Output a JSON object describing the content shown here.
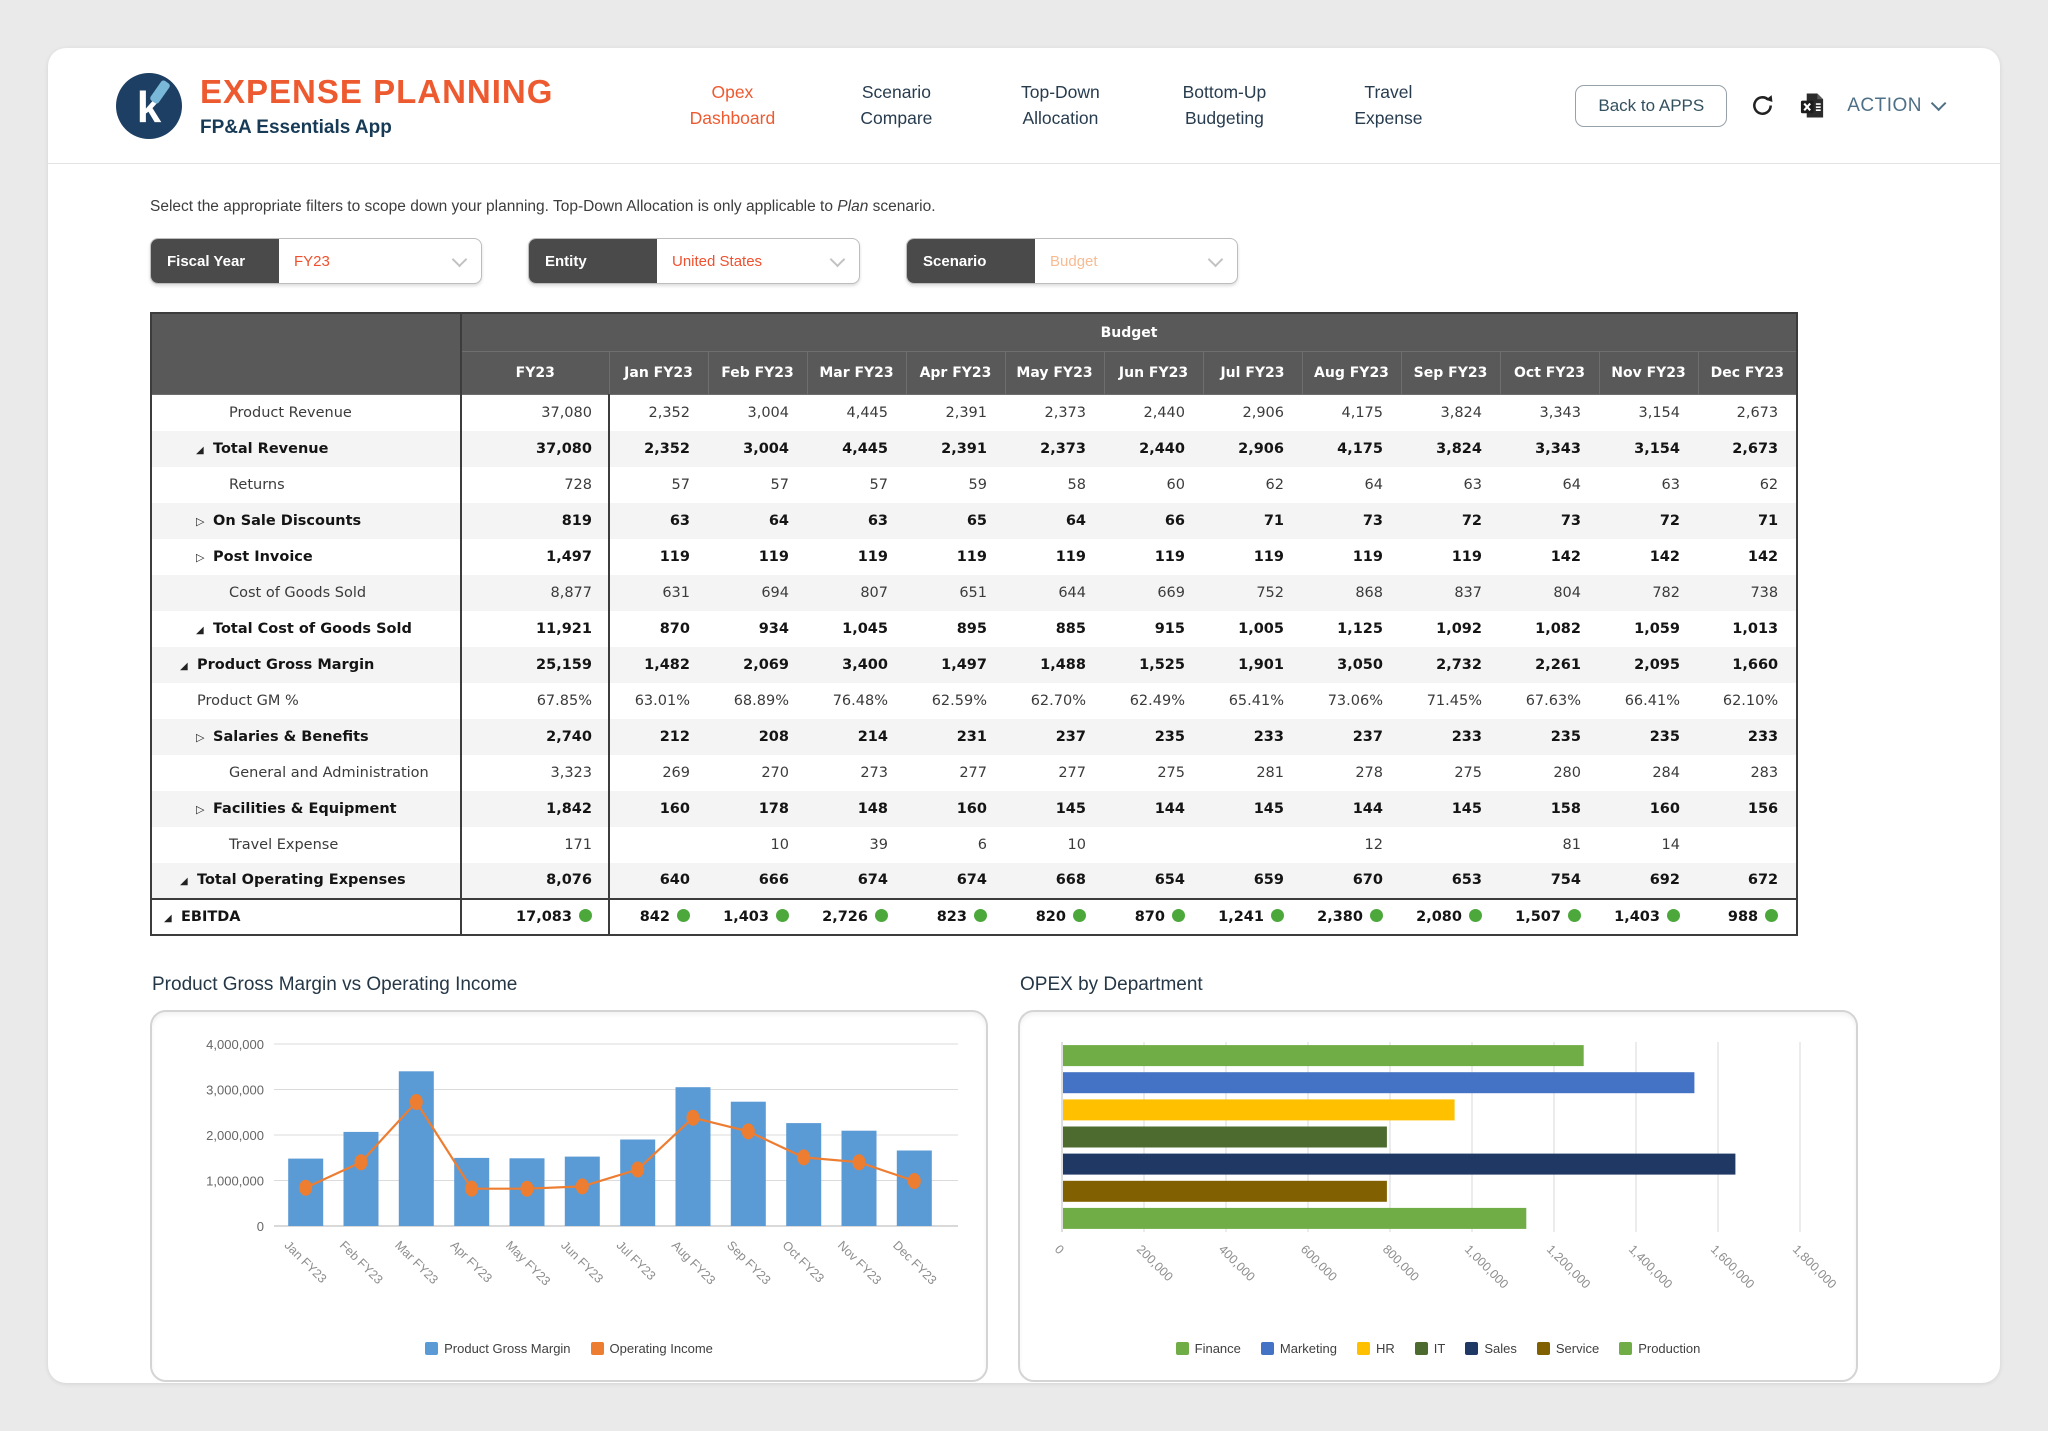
{
  "header": {
    "logo_letter": "k",
    "title": "EXPENSE PLANNING",
    "subtitle": "FP&A Essentials App",
    "nav": [
      {
        "label": "Opex Dashboard",
        "active": true
      },
      {
        "label": "Scenario Compare",
        "active": false
      },
      {
        "label": "Top-Down Allocation",
        "active": false
      },
      {
        "label": "Bottom-Up Budgeting",
        "active": false
      },
      {
        "label": "Travel Expense",
        "active": false
      }
    ],
    "back_button": "Back to APPS",
    "action_label": "ACTION",
    "icons": [
      "refresh-icon",
      "excel-export-icon",
      "chevron-down-icon"
    ]
  },
  "note": {
    "before": "Select the appropriate filters to scope down your planning. Top-Down Allocation is only applicable to ",
    "italic": "Plan",
    "after": " scenario."
  },
  "filters": [
    {
      "label": "Fiscal Year",
      "value": "FY23",
      "disabled": false
    },
    {
      "label": "Entity",
      "value": "United States",
      "disabled": false
    },
    {
      "label": "Scenario",
      "value": "Budget",
      "disabled": true
    }
  ],
  "table": {
    "group_header": "Budget",
    "columns": [
      "FY23",
      "Jan FY23",
      "Feb FY23",
      "Mar FY23",
      "Apr FY23",
      "May FY23",
      "Jun FY23",
      "Jul FY23",
      "Aug FY23",
      "Sep FY23",
      "Oct FY23",
      "Nov FY23",
      "Dec FY23"
    ],
    "rows": [
      {
        "label": "Product Revenue",
        "indent": 3,
        "marker": "none",
        "bold": false,
        "dot": false,
        "values": [
          "37,080",
          "2,352",
          "3,004",
          "4,445",
          "2,391",
          "2,373",
          "2,440",
          "2,906",
          "4,175",
          "3,824",
          "3,343",
          "3,154",
          "2,673"
        ]
      },
      {
        "label": "Total Revenue",
        "indent": 2,
        "marker": "expanded",
        "bold": true,
        "dot": false,
        "values": [
          "37,080",
          "2,352",
          "3,004",
          "4,445",
          "2,391",
          "2,373",
          "2,440",
          "2,906",
          "4,175",
          "3,824",
          "3,343",
          "3,154",
          "2,673"
        ]
      },
      {
        "label": "Returns",
        "indent": 3,
        "marker": "none",
        "bold": false,
        "dot": false,
        "values": [
          "728",
          "57",
          "57",
          "57",
          "59",
          "58",
          "60",
          "62",
          "64",
          "63",
          "64",
          "63",
          "62"
        ]
      },
      {
        "label": "On Sale Discounts",
        "indent": 2,
        "marker": "collapsed",
        "bold": true,
        "dot": false,
        "values": [
          "819",
          "63",
          "64",
          "63",
          "65",
          "64",
          "66",
          "71",
          "73",
          "72",
          "73",
          "72",
          "71"
        ]
      },
      {
        "label": "Post Invoice",
        "indent": 2,
        "marker": "collapsed",
        "bold": true,
        "dot": false,
        "values": [
          "1,497",
          "119",
          "119",
          "119",
          "119",
          "119",
          "119",
          "119",
          "119",
          "119",
          "142",
          "142",
          "142"
        ]
      },
      {
        "label": "Cost of Goods Sold",
        "indent": 3,
        "marker": "none",
        "bold": false,
        "dot": false,
        "values": [
          "8,877",
          "631",
          "694",
          "807",
          "651",
          "644",
          "669",
          "752",
          "868",
          "837",
          "804",
          "782",
          "738"
        ]
      },
      {
        "label": "Total Cost of Goods Sold",
        "indent": 2,
        "marker": "expanded",
        "bold": true,
        "dot": false,
        "values": [
          "11,921",
          "870",
          "934",
          "1,045",
          "895",
          "885",
          "915",
          "1,005",
          "1,125",
          "1,092",
          "1,082",
          "1,059",
          "1,013"
        ]
      },
      {
        "label": "Product Gross Margin",
        "indent": 1,
        "marker": "expanded",
        "bold": true,
        "dot": false,
        "values": [
          "25,159",
          "1,482",
          "2,069",
          "3,400",
          "1,497",
          "1,488",
          "1,525",
          "1,901",
          "3,050",
          "2,732",
          "2,261",
          "2,095",
          "1,660"
        ]
      },
      {
        "label": "Product GM %",
        "indent": 1,
        "marker": "none",
        "bold": false,
        "dot": false,
        "values": [
          "67.85%",
          "63.01%",
          "68.89%",
          "76.48%",
          "62.59%",
          "62.70%",
          "62.49%",
          "65.41%",
          "73.06%",
          "71.45%",
          "67.63%",
          "66.41%",
          "62.10%"
        ]
      },
      {
        "label": "Salaries & Benefits",
        "indent": 2,
        "marker": "collapsed",
        "bold": true,
        "dot": false,
        "values": [
          "2,740",
          "212",
          "208",
          "214",
          "231",
          "237",
          "235",
          "233",
          "237",
          "233",
          "235",
          "235",
          "233"
        ]
      },
      {
        "label": "General and Administration",
        "indent": 3,
        "marker": "none",
        "bold": false,
        "dot": false,
        "values": [
          "3,323",
          "269",
          "270",
          "273",
          "277",
          "277",
          "275",
          "281",
          "278",
          "275",
          "280",
          "284",
          "283"
        ]
      },
      {
        "label": "Facilities & Equipment",
        "indent": 2,
        "marker": "collapsed",
        "bold": true,
        "dot": false,
        "values": [
          "1,842",
          "160",
          "178",
          "148",
          "160",
          "145",
          "144",
          "145",
          "144",
          "145",
          "158",
          "160",
          "156"
        ]
      },
      {
        "label": "Travel Expense",
        "indent": 3,
        "marker": "none",
        "bold": false,
        "dot": false,
        "values": [
          "171",
          "",
          "10",
          "39",
          "6",
          "10",
          "",
          "",
          "12",
          "",
          "81",
          "14",
          ""
        ]
      },
      {
        "label": "Total Operating Expenses",
        "indent": 1,
        "marker": "expanded",
        "bold": true,
        "dot": false,
        "values": [
          "8,076",
          "640",
          "666",
          "674",
          "674",
          "668",
          "654",
          "659",
          "670",
          "653",
          "754",
          "692",
          "672"
        ]
      },
      {
        "label": "EBITDA",
        "indent": 0,
        "marker": "expanded",
        "bold": true,
        "dot": true,
        "values": [
          "17,083",
          "842",
          "1,403",
          "2,726",
          "823",
          "820",
          "870",
          "1,241",
          "2,380",
          "2,080",
          "1,507",
          "1,403",
          "988"
        ]
      }
    ],
    "status_dot_color": "#4da83c"
  },
  "chart_data": [
    {
      "type": "bar",
      "title": "Product Gross Margin vs Operating Income",
      "categories": [
        "Jan FY23",
        "Feb FY23",
        "Mar FY23",
        "Apr FY23",
        "May FY23",
        "Jun FY23",
        "Jul FY23",
        "Aug FY23",
        "Sep FY23",
        "Oct FY23",
        "Nov FY23",
        "Dec FY23"
      ],
      "series": [
        {
          "name": "Product Gross Margin",
          "type": "bar",
          "color": "#5B9BD5",
          "values": [
            1482000,
            2069000,
            3400000,
            1497000,
            1488000,
            1525000,
            1901000,
            3050000,
            2732000,
            2261000,
            2095000,
            1660000
          ]
        },
        {
          "name": "Operating Income",
          "type": "line",
          "color": "#ED7D31",
          "values": [
            842000,
            1403000,
            2726000,
            823000,
            820000,
            870000,
            1241000,
            2380000,
            2080000,
            1507000,
            1403000,
            988000
          ]
        }
      ],
      "ylim": [
        0,
        4000000
      ],
      "ytick_step": 1000000,
      "grid": true,
      "legend_position": "bottom"
    },
    {
      "type": "bar",
      "orientation": "horizontal",
      "title": "OPEX by Department",
      "categories": [
        "Finance",
        "Marketing",
        "HR",
        "IT",
        "Sales",
        "Service",
        "Production"
      ],
      "values": [
        1270000,
        1540000,
        955000,
        790000,
        1640000,
        790000,
        1130000
      ],
      "colors": [
        "#70AD47",
        "#4472C4",
        "#FFC000",
        "#4D6B2E",
        "#1F3864",
        "#806000",
        "#70AD47"
      ],
      "xlim": [
        0,
        1800000
      ],
      "xtick_step": 200000,
      "grid": true,
      "legend_position": "bottom"
    }
  ]
}
